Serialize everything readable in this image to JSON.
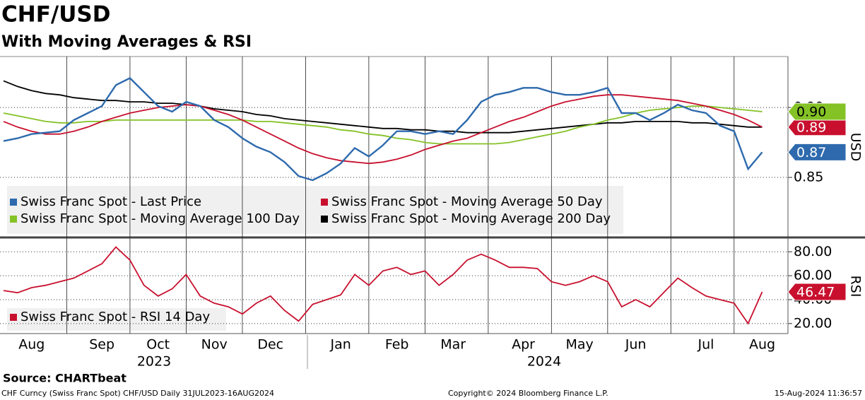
{
  "chart_data": [
    {
      "type": "line",
      "title": "CHF/USD",
      "subtitle": "With Moving Averages & RSI",
      "y_label": "USD",
      "categories": [
        null,
        null,
        "Aug",
        null,
        null,
        null,
        null,
        "Sep",
        null,
        null,
        null,
        "Oct",
        null,
        null,
        null,
        "Nov",
        null,
        null,
        null,
        "Dec",
        null,
        null,
        null,
        null,
        "Jan",
        null,
        null,
        null,
        "Feb",
        null,
        null,
        null,
        "Mar",
        null,
        null,
        null,
        null,
        "Apr",
        null,
        null,
        null,
        "May",
        null,
        null,
        null,
        "Jun",
        null,
        null,
        null,
        null,
        "Jul",
        null,
        null,
        null,
        "Aug"
      ],
      "year_labels": [
        "2023",
        "2024"
      ],
      "ylim": [
        0.8076,
        0.9364
      ],
      "yticks": [
        0.85,
        {
          "value": 0.9,
          "label": "0.90"
        }
      ],
      "grid": true,
      "series": [
        {
          "name": "Swiss Franc Spot - Last Price",
          "color": "#2e6aad",
          "last_label": "0.87",
          "values": [
            0.876,
            0.878,
            0.881,
            0.882,
            0.883,
            0.891,
            0.896,
            0.901,
            0.916,
            0.921,
            0.911,
            0.901,
            0.897,
            0.904,
            0.901,
            0.891,
            0.886,
            0.878,
            0.872,
            0.868,
            0.861,
            0.851,
            0.848,
            0.853,
            0.86,
            0.871,
            0.865,
            0.873,
            0.883,
            0.883,
            0.881,
            0.883,
            0.881,
            0.891,
            0.904,
            0.909,
            0.911,
            0.914,
            0.914,
            0.911,
            0.909,
            0.909,
            0.911,
            0.914,
            0.896,
            0.896,
            0.891,
            0.896,
            0.902,
            0.898,
            0.896,
            0.887,
            0.883,
            0.856,
            0.868
          ]
        },
        {
          "name": "Swiss Franc Spot - Moving Average 50 Day",
          "color": "#c8102e",
          "last_label": "0.89",
          "values": [
            0.89,
            0.886,
            0.883,
            0.881,
            0.881,
            0.883,
            0.886,
            0.89,
            0.893,
            0.896,
            0.898,
            0.9,
            0.901,
            0.902,
            0.901,
            0.898,
            0.895,
            0.891,
            0.886,
            0.881,
            0.876,
            0.871,
            0.867,
            0.864,
            0.862,
            0.861,
            0.86,
            0.861,
            0.863,
            0.866,
            0.87,
            0.873,
            0.876,
            0.878,
            0.882,
            0.886,
            0.89,
            0.893,
            0.897,
            0.901,
            0.904,
            0.906,
            0.908,
            0.909,
            0.909,
            0.908,
            0.907,
            0.906,
            0.905,
            0.903,
            0.901,
            0.898,
            0.895,
            0.891,
            0.886
          ]
        },
        {
          "name": "Swiss Franc Spot - Moving Average 100 Day",
          "color": "#84c225",
          "last_label": "0.90",
          "values": [
            0.896,
            0.894,
            0.892,
            0.89,
            0.889,
            0.889,
            0.89,
            0.89,
            0.891,
            0.891,
            0.891,
            0.891,
            0.891,
            0.891,
            0.891,
            0.891,
            0.891,
            0.891,
            0.89,
            0.89,
            0.889,
            0.888,
            0.887,
            0.886,
            0.884,
            0.883,
            0.881,
            0.88,
            0.878,
            0.877,
            0.875,
            0.874,
            0.874,
            0.874,
            0.874,
            0.874,
            0.875,
            0.877,
            0.879,
            0.881,
            0.883,
            0.886,
            0.888,
            0.891,
            0.893,
            0.896,
            0.898,
            0.899,
            0.9,
            0.901,
            0.901,
            0.9,
            0.899,
            0.898,
            0.897
          ]
        },
        {
          "name": "Swiss Franc Spot - Moving Average 200 Day",
          "color": "#000000",
          "values": [
            0.919,
            0.915,
            0.912,
            0.91,
            0.909,
            0.907,
            0.906,
            0.905,
            0.905,
            0.904,
            0.904,
            0.903,
            0.903,
            0.902,
            0.901,
            0.899,
            0.898,
            0.897,
            0.895,
            0.894,
            0.892,
            0.891,
            0.89,
            0.889,
            0.888,
            0.887,
            0.886,
            0.885,
            0.885,
            0.884,
            0.884,
            0.883,
            0.883,
            0.882,
            0.882,
            0.882,
            0.882,
            0.883,
            0.884,
            0.885,
            0.886,
            0.887,
            0.888,
            0.889,
            0.889,
            0.89,
            0.89,
            0.89,
            0.89,
            0.889,
            0.889,
            0.888,
            0.887,
            0.886,
            0.886
          ]
        }
      ]
    },
    {
      "type": "line",
      "y_label": "RSI",
      "ylim": [
        12.8,
        90.8
      ],
      "yticks": [
        {
          "value": 20,
          "label": "20.00"
        },
        {
          "value": 40,
          "label": "40.00"
        },
        {
          "value": 60,
          "label": "60.00"
        },
        {
          "value": 80,
          "label": "80.00"
        }
      ],
      "grid": true,
      "series": [
        {
          "name": "Swiss Franc Spot - RSI 14 Day",
          "color": "#c8102e",
          "last_label": "46.47",
          "values": [
            47.6,
            45.8,
            50,
            52,
            55,
            58,
            64,
            70,
            84,
            73,
            52,
            43,
            49,
            61,
            43,
            37,
            34,
            28,
            37,
            43,
            31,
            22,
            36,
            40,
            44,
            61,
            52,
            64,
            67,
            61,
            64,
            52,
            61,
            73,
            78,
            73,
            67,
            67,
            66,
            55,
            52,
            55,
            60,
            55,
            34,
            40,
            34,
            46,
            58,
            50,
            43,
            40,
            37,
            20,
            46.47
          ]
        }
      ]
    }
  ],
  "source": "Source: CHARTbeat",
  "footer_left": "CHF Curncy (Swiss Franc Spot) CHF/USD  Daily 31JUL2023-16AUG2024",
  "footer_center": "Copyright© 2024 Bloomberg Finance L.P.",
  "footer_right": "15-Aug-2024 11:36:57"
}
